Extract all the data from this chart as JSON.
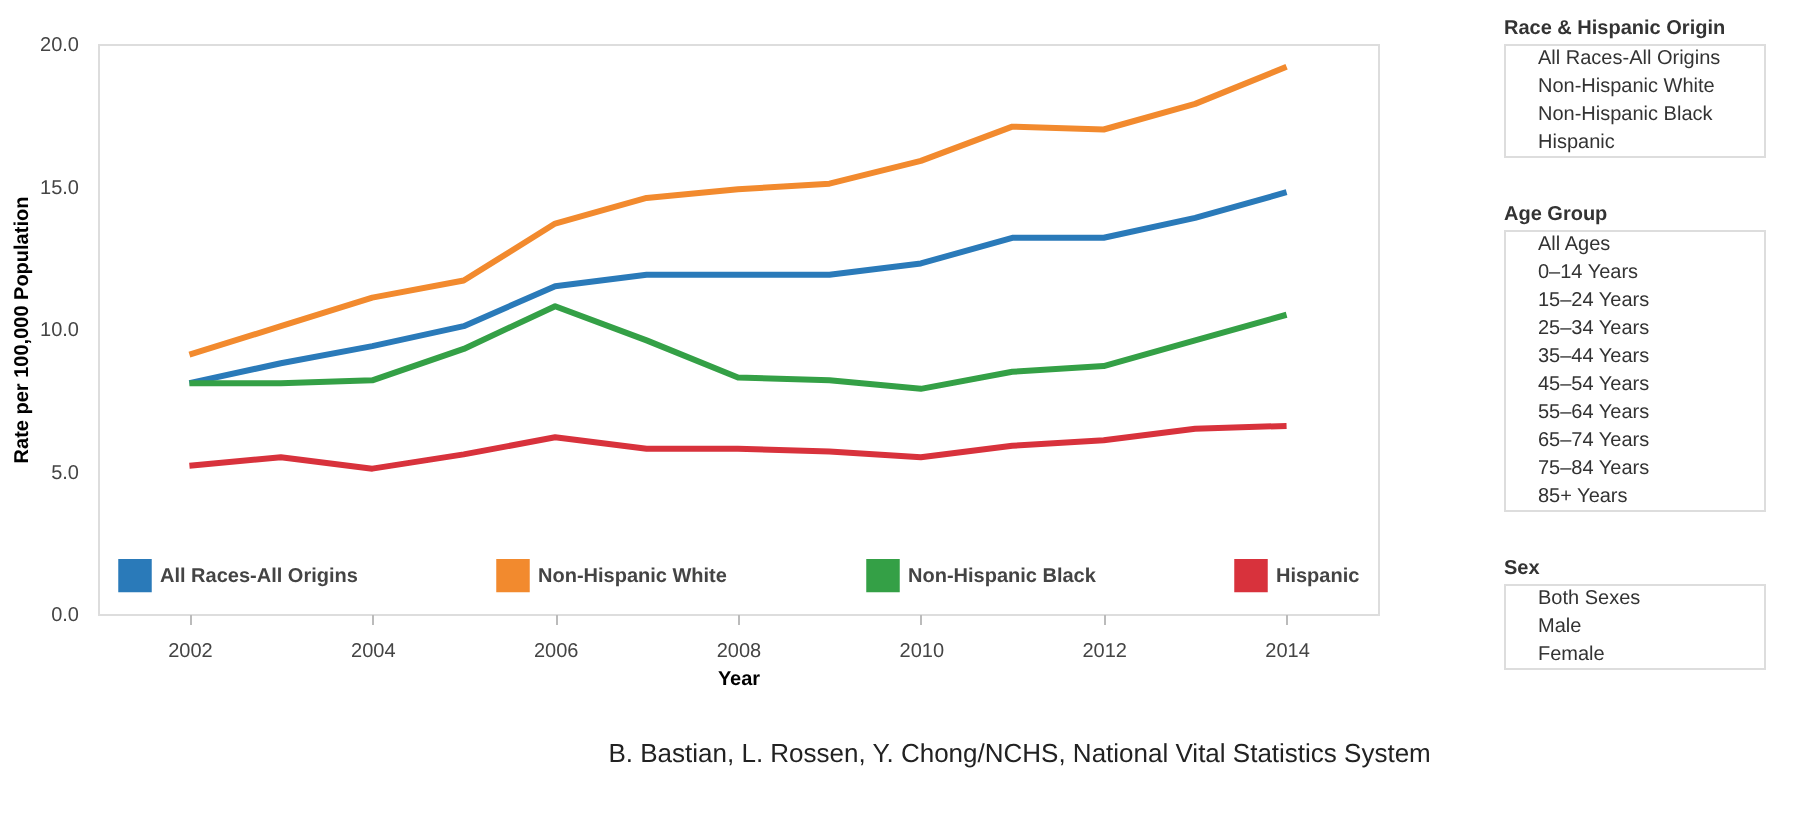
{
  "chart_data": [
    {
      "type": "line",
      "xlabel": "Year",
      "ylabel": "Rate per 100,000 Population",
      "x": [
        2002,
        2003,
        2004,
        2005,
        2006,
        2007,
        2008,
        2009,
        2010,
        2011,
        2012,
        2013,
        2014
      ],
      "series": [
        {
          "name": "All Races-All Origins",
          "color": "#2a7ab9",
          "values": [
            8.1,
            8.8,
            9.4,
            10.1,
            11.5,
            11.9,
            11.9,
            11.9,
            12.3,
            13.2,
            13.2,
            13.9,
            14.8
          ]
        },
        {
          "name": "Non-Hispanic White",
          "color": "#f28a2e",
          "values": [
            9.1,
            10.1,
            11.1,
            11.7,
            13.7,
            14.6,
            14.9,
            15.1,
            15.9,
            17.1,
            17.0,
            17.9,
            19.2
          ]
        },
        {
          "name": "Non-Hispanic Black",
          "color": "#34a046",
          "values": [
            8.1,
            8.1,
            8.2,
            9.3,
            10.8,
            9.6,
            8.3,
            8.2,
            7.9,
            8.5,
            8.7,
            9.6,
            10.5
          ]
        },
        {
          "name": "Hispanic",
          "color": "#d8323c",
          "values": [
            5.2,
            5.5,
            5.1,
            5.6,
            6.2,
            5.8,
            5.8,
            5.7,
            5.5,
            5.9,
            6.1,
            6.5,
            6.6
          ]
        }
      ],
      "xlim": [
        2001,
        2015
      ],
      "xticks": [
        2002,
        2004,
        2006,
        2008,
        2010,
        2012,
        2014
      ],
      "ylim": [
        0,
        20
      ],
      "yticks": [
        {
          "value": 0,
          "label": "0.0"
        },
        {
          "value": 5,
          "label": "5.0"
        },
        {
          "value": 10,
          "label": "10.0"
        },
        {
          "value": 15,
          "label": "15.0"
        },
        {
          "value": 20,
          "label": "20.0"
        }
      ],
      "grid": false,
      "legend": "bottom",
      "line_style": "solid",
      "annotations": [
        "B. Bastian, L. Rossen, Y. Chong/NCHS, National Vital Statistics System"
      ]
    },
    {
      "type": "other",
      "title": "Race & Hispanic Origin",
      "annotations": [
        "All Races-All Origins",
        "Non-Hispanic White",
        "Non-Hispanic Black",
        "Hispanic"
      ]
    },
    {
      "type": "other",
      "title": "Age Group",
      "annotations": [
        "All Ages",
        "0–14 Years",
        "15–24 Years",
        "25–34 Years",
        "35–44 Years",
        "45–54 Years",
        "55–64 Years",
        "65–74 Years",
        "75–84 Years",
        "85+ Years"
      ]
    },
    {
      "type": "other",
      "title": "Sex",
      "annotations": [
        "Both Sexes",
        "Male",
        "Female"
      ]
    }
  ]
}
